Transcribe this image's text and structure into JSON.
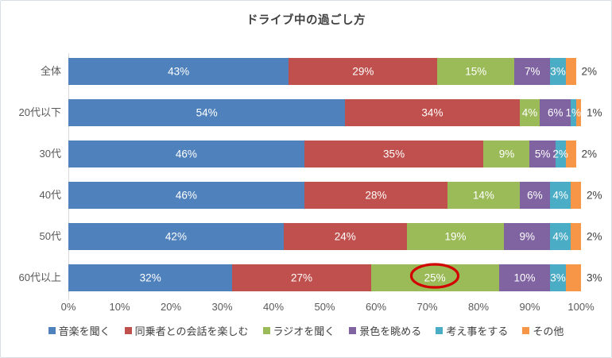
{
  "title": "ドライブ中の過ごし方",
  "chart_data": {
    "type": "bar",
    "stacked": true,
    "orientation": "horizontal",
    "title": "ドライブ中の過ごし方",
    "categories": [
      "全体",
      "20代以下",
      "30代",
      "40代",
      "50代",
      "60代以上"
    ],
    "series": [
      {
        "name": "音楽を聞く",
        "color": "#4F81BD",
        "values": [
          43,
          54,
          46,
          46,
          42,
          32
        ]
      },
      {
        "name": "同乗者との会話を楽しむ",
        "color": "#C0504D",
        "values": [
          29,
          34,
          35,
          28,
          24,
          27
        ]
      },
      {
        "name": "ラジオを聞く",
        "color": "#9BBB59",
        "values": [
          15,
          4,
          9,
          14,
          19,
          25
        ]
      },
      {
        "name": "景色を眺める",
        "color": "#8064A2",
        "values": [
          7,
          6,
          5,
          6,
          9,
          10
        ]
      },
      {
        "name": "考え事をする",
        "color": "#4BACC6",
        "values": [
          3,
          1,
          2,
          4,
          4,
          3
        ]
      },
      {
        "name": "その他",
        "color": "#F79646",
        "values": [
          2,
          1,
          2,
          2,
          2,
          3
        ]
      }
    ],
    "value_suffix": "%",
    "x_ticks": [
      "0%",
      "10%",
      "20%",
      "30%",
      "40%",
      "50%",
      "60%",
      "70%",
      "80%",
      "90%",
      "100%"
    ],
    "xlim": [
      0,
      100
    ],
    "grid": false,
    "legend_position": "bottom",
    "label_colors": {
      "inside": "#ffffff",
      "outside": "#3f3f3f"
    },
    "annotation": {
      "shape": "ellipse",
      "category": "60代以上",
      "series": "ラジオを聞く",
      "category_index": 5,
      "series_index": 2,
      "highlighted_value": "25%",
      "color": "#d20000"
    }
  }
}
